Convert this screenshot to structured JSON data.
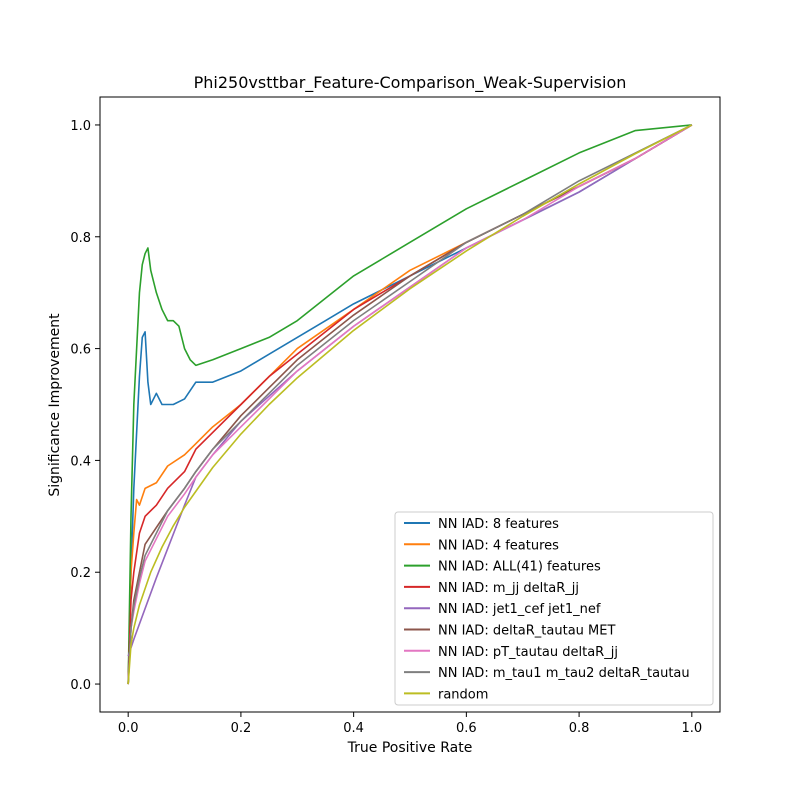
{
  "chart_data": {
    "type": "line",
    "title": "Phi250vsttbar_Feature-Comparison_Weak-Supervision",
    "xlabel": "True Positive Rate",
    "ylabel": "Significance Improvement",
    "xlim": [
      -0.05,
      1.05
    ],
    "ylim": [
      -0.05,
      1.05
    ],
    "xticks": [
      "0.0",
      "0.2",
      "0.4",
      "0.6",
      "0.8",
      "1.0"
    ],
    "yticks": [
      "0.0",
      "0.2",
      "0.4",
      "0.6",
      "0.8",
      "1.0"
    ],
    "grid": false,
    "legend_position": "lower-right",
    "series": [
      {
        "name": "NN IAD: 8 features",
        "color": "#1f77b4",
        "x": [
          0,
          0.005,
          0.01,
          0.02,
          0.025,
          0.03,
          0.035,
          0.04,
          0.05,
          0.06,
          0.08,
          0.1,
          0.12,
          0.15,
          0.2,
          0.25,
          0.3,
          0.35,
          0.4,
          0.5,
          0.6,
          0.7,
          0.8,
          0.9,
          1.0
        ],
        "y": [
          0.0,
          0.2,
          0.35,
          0.55,
          0.62,
          0.63,
          0.54,
          0.5,
          0.52,
          0.5,
          0.5,
          0.51,
          0.54,
          0.54,
          0.56,
          0.59,
          0.62,
          0.65,
          0.68,
          0.73,
          0.78,
          0.83,
          0.88,
          0.94,
          1.0
        ]
      },
      {
        "name": "NN IAD: 4 features",
        "color": "#ff7f0e",
        "x": [
          0,
          0.005,
          0.01,
          0.015,
          0.02,
          0.03,
          0.05,
          0.07,
          0.1,
          0.12,
          0.15,
          0.2,
          0.25,
          0.3,
          0.4,
          0.5,
          0.6,
          0.7,
          0.8,
          0.9,
          1.0
        ],
        "y": [
          0.0,
          0.2,
          0.27,
          0.33,
          0.32,
          0.35,
          0.36,
          0.39,
          0.41,
          0.43,
          0.46,
          0.5,
          0.55,
          0.6,
          0.67,
          0.74,
          0.79,
          0.84,
          0.89,
          0.94,
          1.0
        ]
      },
      {
        "name": "NN IAD: ALL(41) features",
        "color": "#2ca02c",
        "x": [
          0,
          0.005,
          0.01,
          0.02,
          0.025,
          0.03,
          0.035,
          0.04,
          0.05,
          0.06,
          0.07,
          0.08,
          0.09,
          0.1,
          0.11,
          0.12,
          0.15,
          0.2,
          0.25,
          0.3,
          0.35,
          0.4,
          0.5,
          0.6,
          0.7,
          0.8,
          0.9,
          1.0
        ],
        "y": [
          0.0,
          0.3,
          0.5,
          0.7,
          0.75,
          0.77,
          0.78,
          0.74,
          0.7,
          0.67,
          0.65,
          0.65,
          0.64,
          0.6,
          0.58,
          0.57,
          0.58,
          0.6,
          0.62,
          0.65,
          0.69,
          0.73,
          0.79,
          0.85,
          0.9,
          0.95,
          0.99,
          1.0
        ]
      },
      {
        "name": "NN IAD: m_jj deltaR_jj",
        "color": "#d62728",
        "x": [
          0,
          0.005,
          0.01,
          0.02,
          0.03,
          0.05,
          0.07,
          0.1,
          0.12,
          0.15,
          0.2,
          0.25,
          0.3,
          0.4,
          0.5,
          0.6,
          0.7,
          0.8,
          0.9,
          1.0
        ],
        "y": [
          0.0,
          0.15,
          0.2,
          0.27,
          0.3,
          0.32,
          0.35,
          0.38,
          0.42,
          0.45,
          0.5,
          0.55,
          0.59,
          0.67,
          0.73,
          0.79,
          0.84,
          0.89,
          0.94,
          1.0
        ]
      },
      {
        "name": "NN IAD: jet1_cef jet1_nef",
        "color": "#9467bd",
        "x": [
          0,
          0.01,
          0.05,
          0.1,
          0.12,
          0.15,
          0.2,
          0.3,
          0.4,
          0.5,
          0.6,
          0.7,
          0.8,
          0.9,
          1.0
        ],
        "y": [
          0.05,
          0.08,
          0.19,
          0.32,
          0.37,
          0.41,
          0.47,
          0.56,
          0.64,
          0.71,
          0.78,
          0.83,
          0.88,
          0.94,
          1.0
        ]
      },
      {
        "name": "NN IAD: deltaR_tautau MET",
        "color": "#8c564b",
        "x": [
          0,
          0.005,
          0.01,
          0.02,
          0.03,
          0.05,
          0.07,
          0.1,
          0.12,
          0.15,
          0.2,
          0.25,
          0.3,
          0.4,
          0.5,
          0.6,
          0.7,
          0.8,
          0.9,
          1.0
        ],
        "y": [
          0.0,
          0.1,
          0.15,
          0.2,
          0.25,
          0.28,
          0.31,
          0.35,
          0.38,
          0.42,
          0.48,
          0.53,
          0.58,
          0.66,
          0.73,
          0.79,
          0.84,
          0.89,
          0.94,
          1.0
        ]
      },
      {
        "name": "NN IAD: pT_tautau deltaR_jj",
        "color": "#e377c2",
        "x": [
          0,
          0.005,
          0.01,
          0.02,
          0.03,
          0.05,
          0.07,
          0.1,
          0.12,
          0.15,
          0.2,
          0.25,
          0.3,
          0.4,
          0.5,
          0.6,
          0.7,
          0.8,
          0.9,
          1.0
        ],
        "y": [
          0.0,
          0.1,
          0.13,
          0.18,
          0.22,
          0.26,
          0.3,
          0.34,
          0.37,
          0.41,
          0.46,
          0.51,
          0.56,
          0.64,
          0.71,
          0.78,
          0.83,
          0.89,
          0.94,
          1.0
        ]
      },
      {
        "name": "NN IAD: m_tau1 m_tau2 deltaR_tautau",
        "color": "#7f7f7f",
        "x": [
          0,
          0.005,
          0.01,
          0.02,
          0.03,
          0.05,
          0.07,
          0.1,
          0.12,
          0.15,
          0.2,
          0.25,
          0.3,
          0.4,
          0.5,
          0.6,
          0.7,
          0.8,
          0.9,
          1.0
        ],
        "y": [
          0.0,
          0.1,
          0.14,
          0.19,
          0.23,
          0.27,
          0.31,
          0.35,
          0.38,
          0.42,
          0.47,
          0.52,
          0.57,
          0.65,
          0.72,
          0.79,
          0.84,
          0.9,
          0.95,
          1.0
        ]
      },
      {
        "name": "random",
        "color": "#bcbd22",
        "x": [
          0,
          0.005,
          0.01,
          0.02,
          0.04,
          0.06,
          0.08,
          0.1,
          0.15,
          0.2,
          0.25,
          0.3,
          0.4,
          0.5,
          0.6,
          0.7,
          0.8,
          0.9,
          1.0
        ],
        "y": [
          0.0,
          0.0707,
          0.1,
          0.1414,
          0.2,
          0.2449,
          0.2828,
          0.3162,
          0.3873,
          0.4472,
          0.5,
          0.5477,
          0.6325,
          0.7071,
          0.7746,
          0.8367,
          0.8944,
          0.9487,
          1.0
        ]
      }
    ]
  }
}
